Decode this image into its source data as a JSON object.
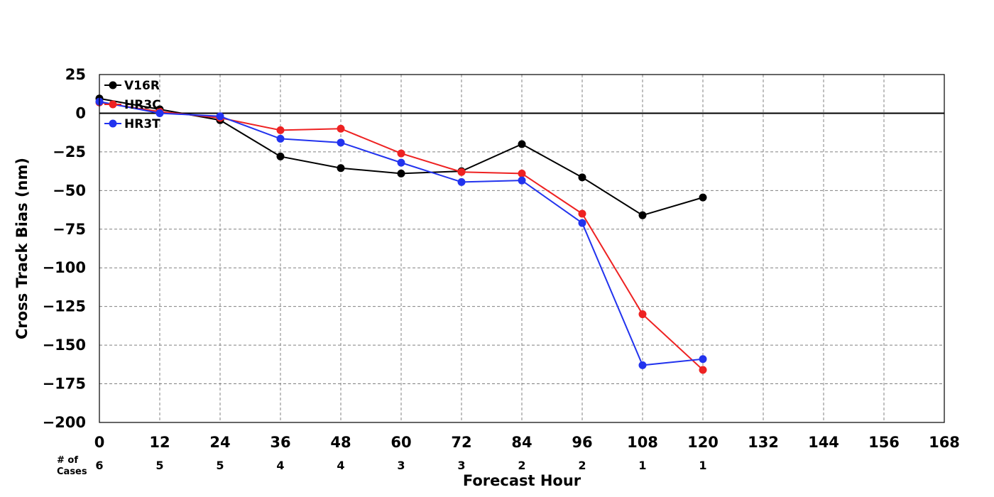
{
  "chart_data": {
    "type": "line",
    "xlabel": "Forecast Hour",
    "ylabel": "Cross Track Bias (nm)",
    "xlim": [
      0,
      168
    ],
    "ylim": [
      -200,
      25
    ],
    "x_ticks": [
      0,
      12,
      24,
      36,
      48,
      60,
      72,
      84,
      96,
      108,
      120,
      132,
      144,
      156,
      168
    ],
    "y_ticks": [
      25,
      0,
      -25,
      -50,
      -75,
      -100,
      -125,
      -150,
      -175,
      -200
    ],
    "y_tick_labels": [
      "25",
      "0",
      "−25",
      "−50",
      "−75",
      "−100",
      "−125",
      "−150",
      "−175",
      "−200"
    ],
    "grid": true,
    "zero_line": true,
    "legend_position": "top-left",
    "cases_label_line1": "# of",
    "cases_label_line2": "Cases",
    "cases_x": [
      0,
      12,
      24,
      36,
      48,
      60,
      72,
      84,
      96,
      108,
      120
    ],
    "cases": [
      "6",
      "5",
      "5",
      "4",
      "4",
      "3",
      "3",
      "2",
      "2",
      "1",
      "1"
    ],
    "x": [
      0,
      12,
      24,
      36,
      48,
      60,
      72,
      84,
      96,
      108,
      120
    ],
    "series": [
      {
        "name": "V16R",
        "color": "#000000",
        "values": [
          9.5,
          2.5,
          -4.5,
          -28,
          -35.5,
          -39,
          -37.5,
          -20,
          -41.5,
          -66,
          -54.5
        ]
      },
      {
        "name": "HR3C",
        "color": "#ee2222",
        "values": [
          7,
          1,
          -3,
          -11,
          -10,
          -26,
          -38,
          -39,
          -65,
          -130,
          -166
        ]
      },
      {
        "name": "HR3T",
        "color": "#2233ee",
        "values": [
          7.5,
          0,
          -2,
          -16.5,
          -19,
          -32,
          -44.5,
          -43.5,
          -71,
          -163,
          -159
        ]
      }
    ]
  }
}
